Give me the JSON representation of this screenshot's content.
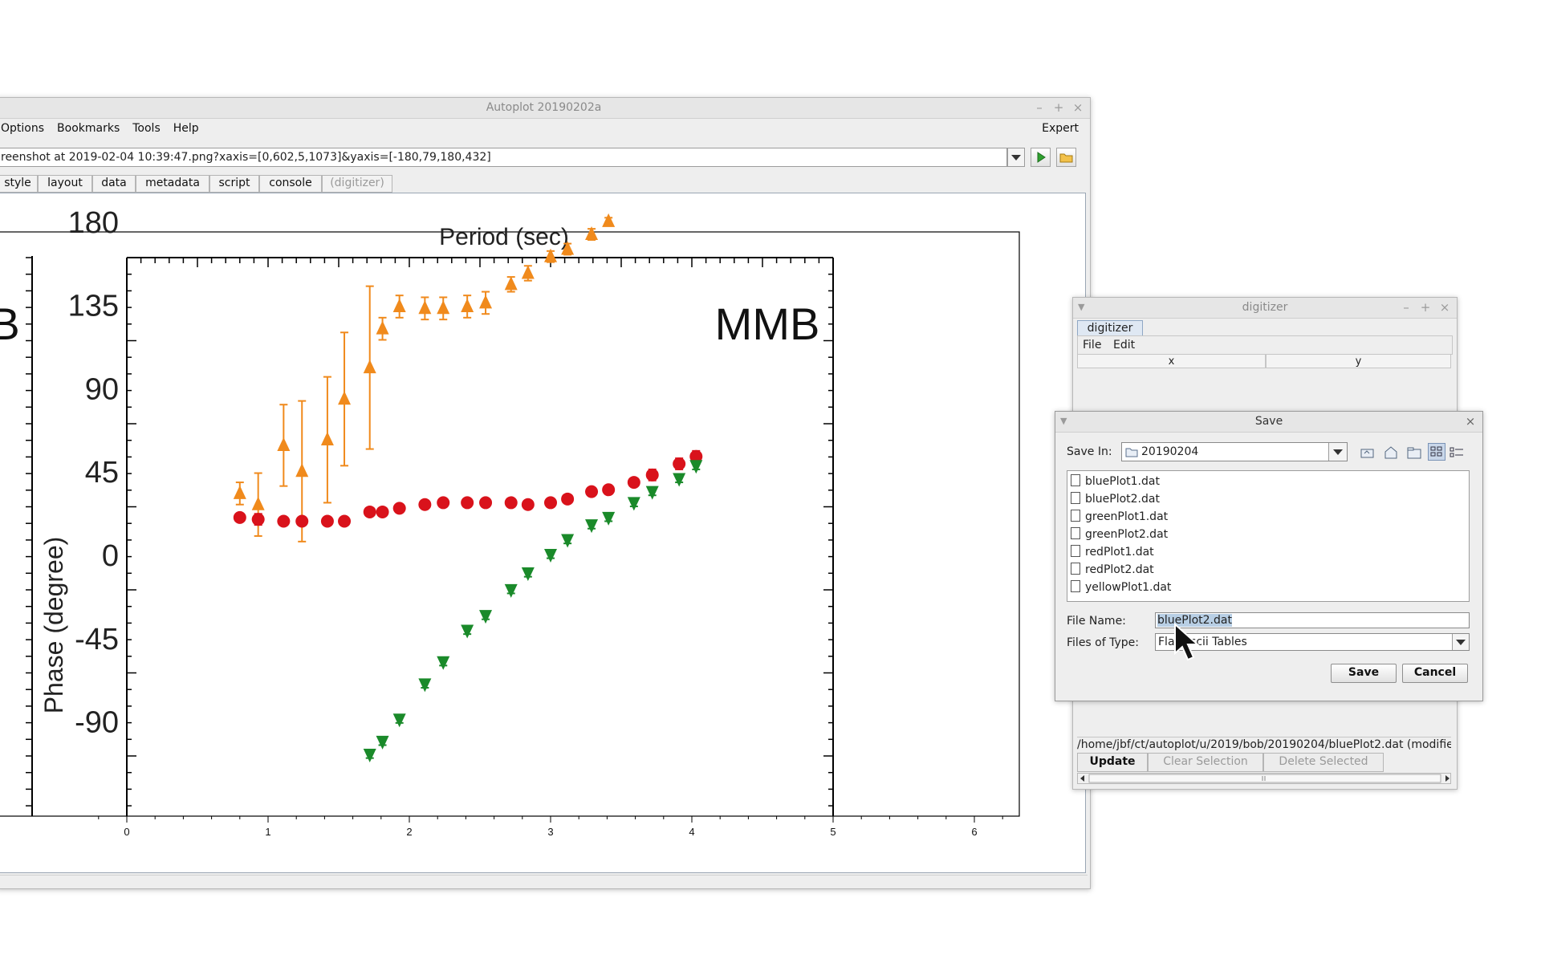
{
  "main_window": {
    "title": "Autoplot 20190202a",
    "menu": [
      "Options",
      "Bookmarks",
      "Tools",
      "Help"
    ],
    "expert_label": "Expert",
    "uri": "reenshot at 2019-02-04 10:39:47.png?xaxis=[0,602,5,1073]&yaxis=[-180,79,180,432]",
    "tabs": [
      "style",
      "layout",
      "data",
      "metadata",
      "script",
      "console",
      "(digitizer)"
    ]
  },
  "plot": {
    "image_labels": {
      "period_title": "Period (sec)",
      "mmb_label": "MMB",
      "b_label": "B",
      "phase_axis": "Phase (degree)",
      "y_ticks": [
        "180",
        "135",
        "90",
        "45",
        "0",
        "-45",
        "-90"
      ]
    },
    "x_ticks": [
      "0",
      "1",
      "2",
      "3",
      "4",
      "5",
      "6"
    ]
  },
  "chart_data": {
    "type": "scatter",
    "x_ticks": [
      0,
      1,
      2,
      3,
      4,
      5,
      6
    ],
    "y_ticks": [
      180,
      135,
      90,
      45,
      0,
      -45,
      -90
    ],
    "ylim": [
      -110,
      180
    ],
    "series": [
      {
        "color": "#f08a1c",
        "marker": "triangle-up",
        "x": [
          0.8,
          0.93,
          1.11,
          1.24,
          1.42,
          1.54,
          1.72,
          1.81,
          1.93,
          2.11,
          2.24,
          2.41,
          2.54,
          2.72,
          2.84,
          3.0,
          3.12,
          3.29,
          3.41
        ],
        "y": [
          33,
          27,
          59,
          45,
          62,
          84,
          101,
          122,
          134,
          133,
          133,
          134,
          136,
          146,
          152,
          161,
          165,
          173,
          180
        ],
        "err": [
          6,
          17,
          22,
          38,
          34,
          36,
          44,
          6,
          6,
          6,
          6,
          6,
          6,
          4,
          4,
          3,
          3,
          3,
          2
        ]
      },
      {
        "color": "#d9121b",
        "marker": "circle",
        "x": [
          0.8,
          0.93,
          1.11,
          1.24,
          1.42,
          1.54,
          1.72,
          1.81,
          1.93,
          2.11,
          2.24,
          2.41,
          2.54,
          2.72,
          2.84,
          3.0,
          3.12,
          3.29,
          3.41,
          3.59,
          3.72,
          3.91,
          4.03
        ],
        "y": [
          20,
          19,
          18,
          18,
          18,
          18,
          23,
          23,
          25,
          27,
          28,
          28,
          28,
          28,
          27,
          28,
          30,
          34,
          35,
          39,
          43,
          49,
          53
        ],
        "err": [
          2,
          3,
          2,
          2,
          2,
          2,
          2,
          2,
          2,
          2,
          2,
          2,
          2,
          2,
          2,
          2,
          2,
          2,
          2,
          2,
          3,
          3,
          3
        ]
      },
      {
        "color": "#1a8a2a",
        "marker": "triangle-down",
        "x": [
          1.72,
          1.81,
          1.93,
          2.11,
          2.24,
          2.41,
          2.54,
          2.72,
          2.84,
          3.0,
          3.12,
          3.29,
          3.41,
          3.59,
          3.72,
          3.91,
          4.03
        ],
        "y": [
          -108,
          -101,
          -89,
          -70,
          -58,
          -41,
          -33,
          -19,
          -10,
          0,
          8,
          16,
          20,
          28,
          34,
          41,
          48
        ],
        "err": [
          2,
          2,
          2,
          2,
          2,
          2,
          2,
          2,
          2,
          2,
          2,
          2,
          2,
          2,
          2,
          2,
          2
        ]
      }
    ]
  },
  "digitizer": {
    "title": "digitizer",
    "tab": "digitizer",
    "menu": [
      "File",
      "Edit"
    ],
    "columns": [
      "x",
      "y"
    ],
    "status_path": "/home/jbf/ct/autoplot/u/2019/bob/20190204/bluePlot2.dat (modifie",
    "buttons": [
      "Update",
      "Clear Selection",
      "Delete Selected"
    ]
  },
  "save_dialog": {
    "title": "Save",
    "save_in_label": "Save In:",
    "save_in_value": "20190204",
    "files": [
      "bluePlot1.dat",
      "bluePlot2.dat",
      "greenPlot1.dat",
      "greenPlot2.dat",
      "redPlot1.dat",
      "redPlot2.dat",
      "yellowPlot1.dat"
    ],
    "file_name_label": "File Name:",
    "file_name_value": "bluePlot2.dat",
    "file_type_label": "Files of Type:",
    "file_type_value": "Flat Ascii Tables",
    "save_button": "Save",
    "cancel_button": "Cancel"
  }
}
